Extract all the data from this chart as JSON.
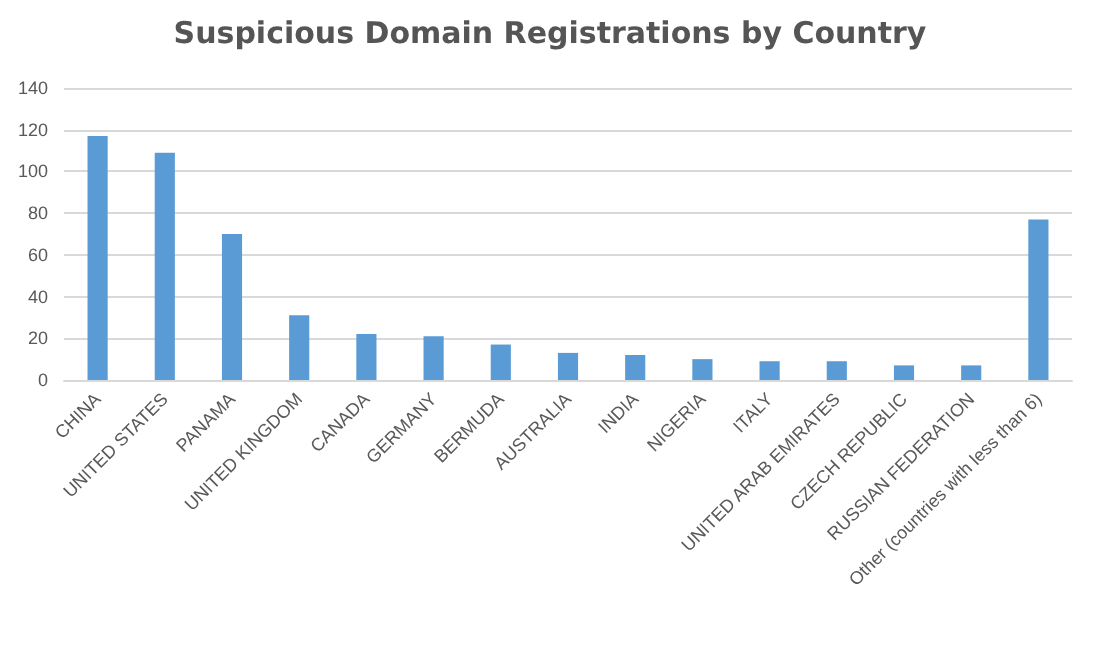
{
  "chart_data": {
    "type": "bar",
    "title": "Suspicious Domain Registrations by Country",
    "categories": [
      "CHINA",
      "UNITED STATES",
      "PANAMA",
      "UNITED KINGDOM",
      "CANADA",
      "GERMANY",
      "BERMUDA",
      "AUSTRALIA",
      "INDIA",
      "NIGERIA",
      "ITALY",
      "UNITED ARAB EMIRATES",
      "CZECH REPUBLIC",
      "RUSSIAN FEDERATION",
      "Other (countries with less than 6)"
    ],
    "values": [
      117,
      109,
      70,
      31,
      22,
      21,
      17,
      13,
      12,
      10,
      9,
      9,
      7,
      7,
      77
    ],
    "color": "#5b9bd5",
    "ylim": [
      0,
      140
    ],
    "yticks": [
      0,
      20,
      40,
      60,
      80,
      100,
      120,
      140
    ],
    "grid": "y"
  }
}
